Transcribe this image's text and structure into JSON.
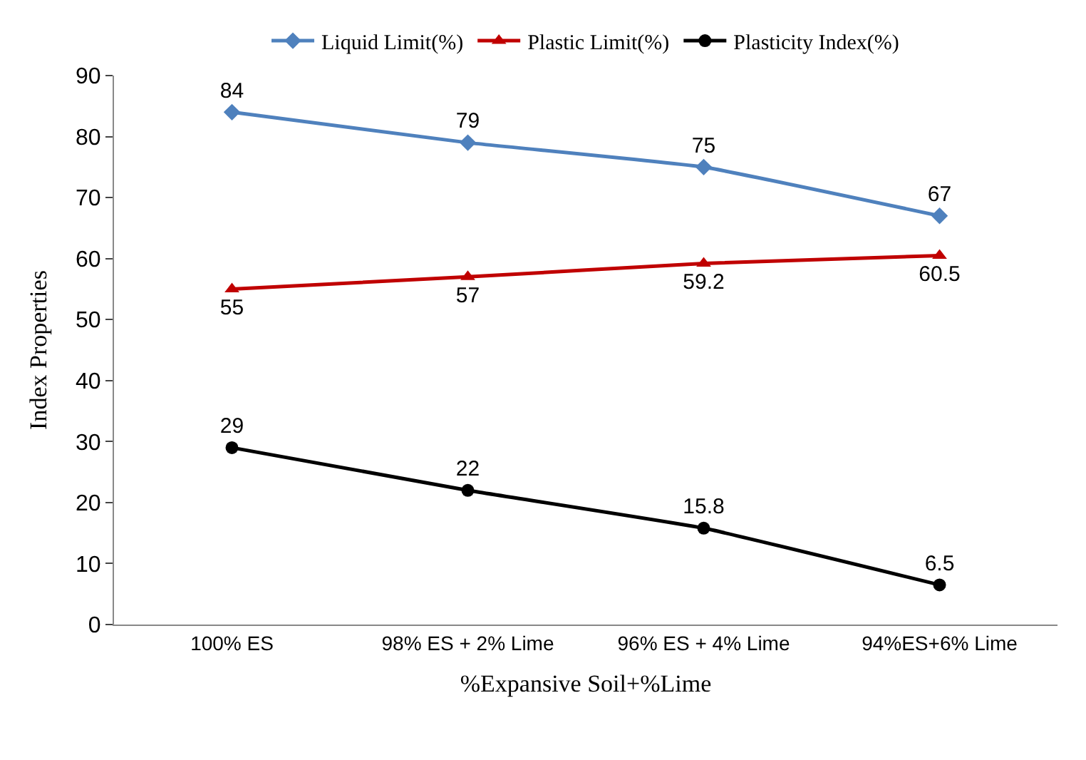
{
  "chart_data": {
    "type": "line",
    "xlabel": "%Expansive Soil+%Lime",
    "ylabel": "Index Properties",
    "categories": [
      "100% ES",
      "98% ES + 2% Lime",
      "96% ES + 4% Lime",
      "94%ES+6% Lime"
    ],
    "series": [
      {
        "name": "Liquid Limit(%)",
        "color": "#4f81bd",
        "marker": "diamond",
        "values": [
          84,
          79,
          75,
          67
        ]
      },
      {
        "name": "Plastic Limit(%)",
        "color": "#c00000",
        "marker": "triangle",
        "values": [
          55,
          57,
          59.2,
          60.5
        ]
      },
      {
        "name": "Plasticity Index(%)",
        "color": "#000000",
        "marker": "circle",
        "values": [
          29,
          22,
          15.8,
          6.5
        ]
      }
    ],
    "ylim": [
      0,
      90
    ],
    "yticks": [
      0,
      10,
      20,
      30,
      40,
      50,
      60,
      70,
      80,
      90
    ],
    "legend": "top",
    "data_labels": true,
    "line_style": "solid"
  }
}
